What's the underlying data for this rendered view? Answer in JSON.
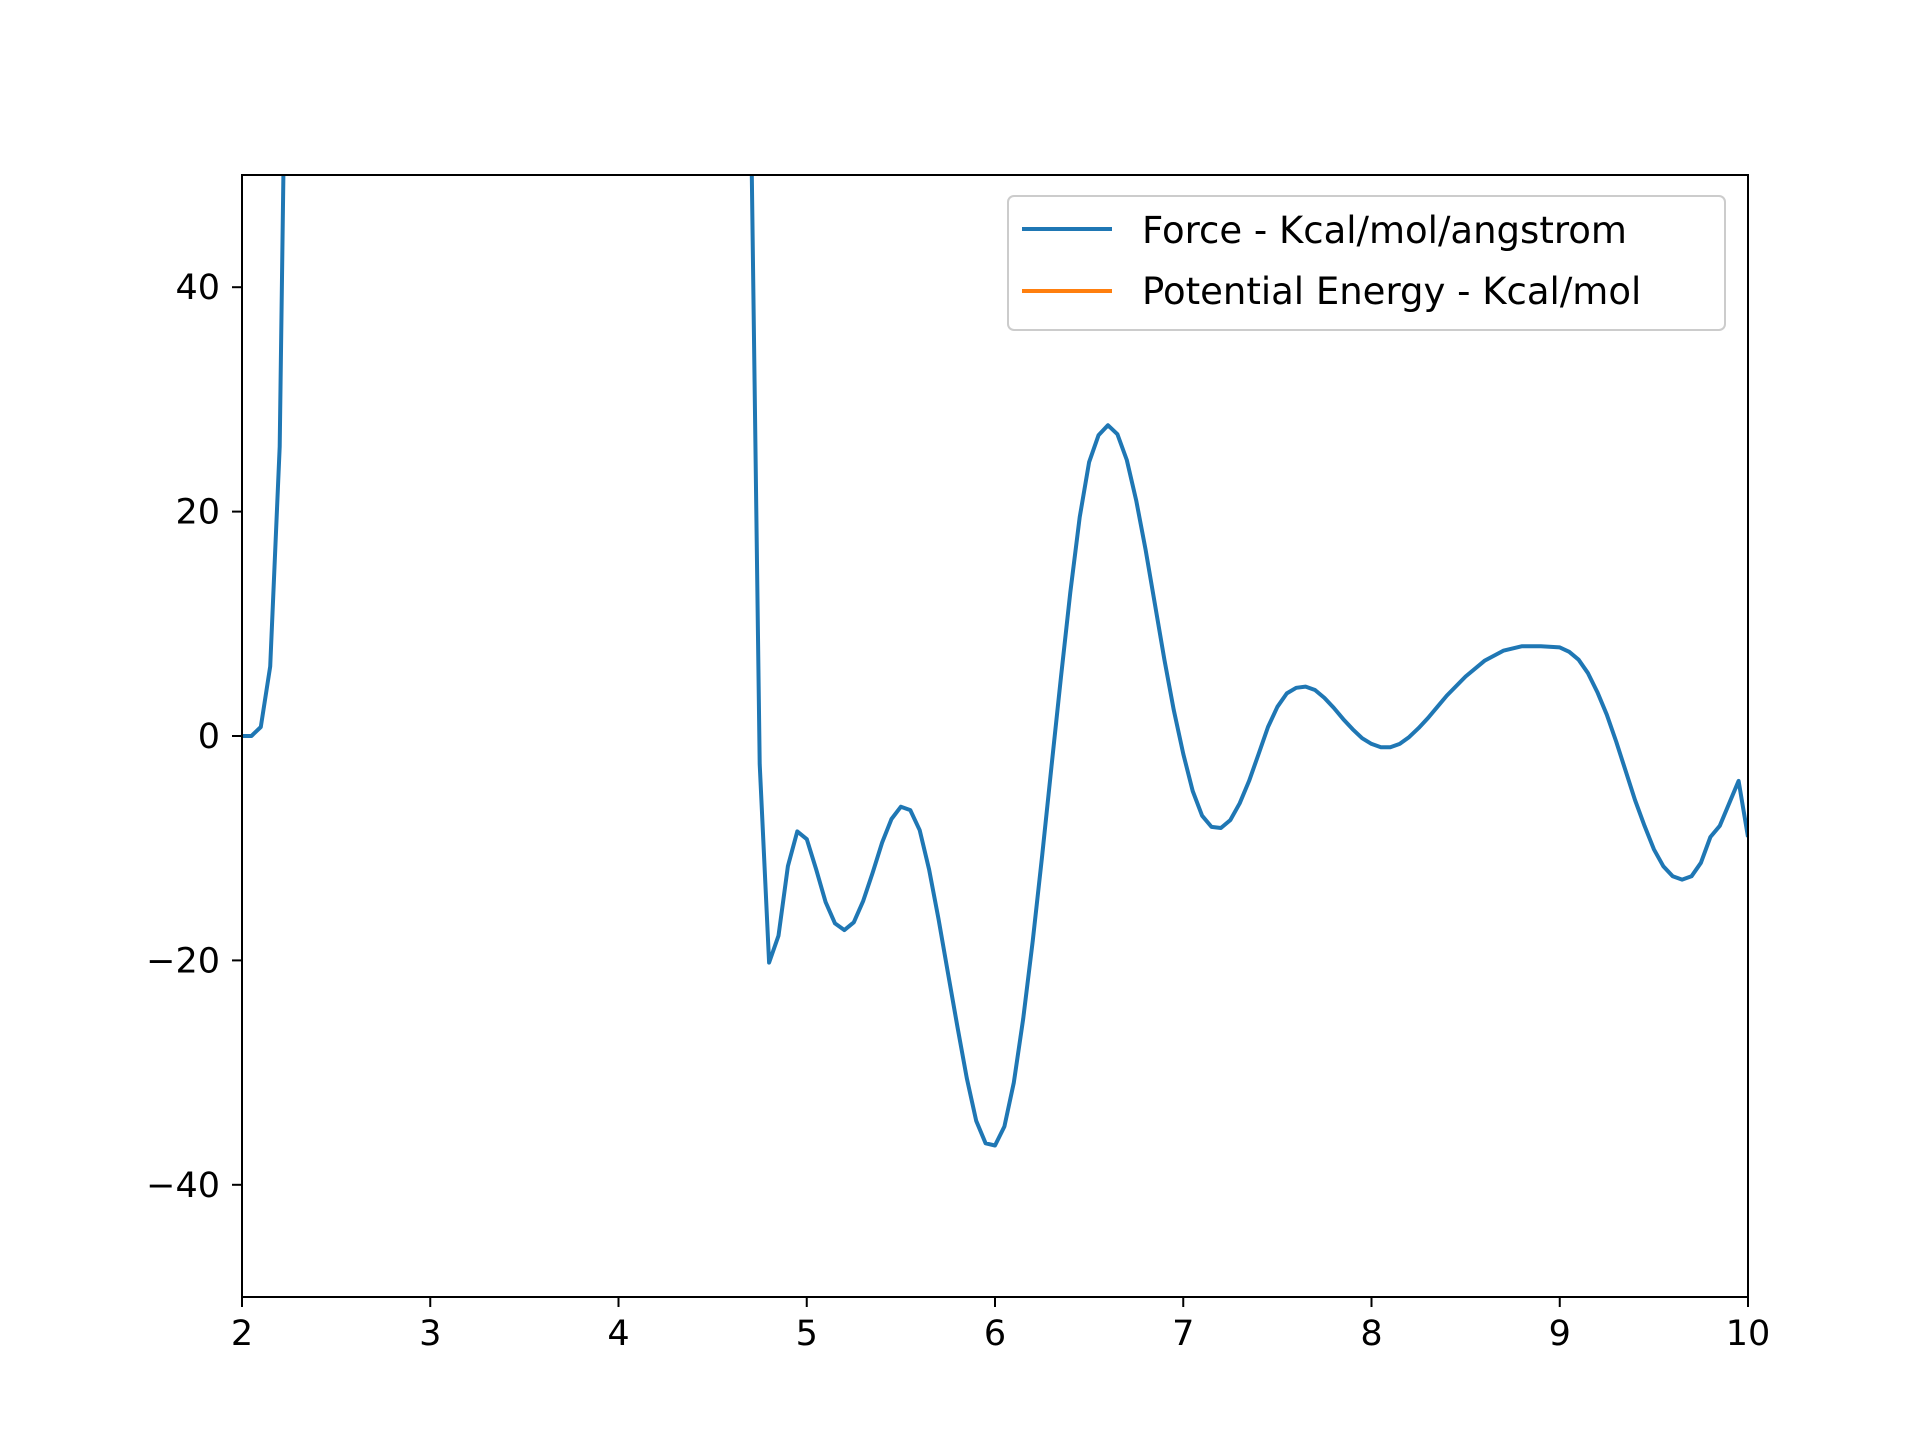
{
  "chart_data": {
    "type": "line",
    "title": "",
    "xlabel": "",
    "ylabel": "",
    "xlim": [
      2,
      10
    ],
    "ylim": [
      -50,
      50
    ],
    "xticks": [
      2,
      3,
      4,
      5,
      6,
      7,
      8,
      9,
      10
    ],
    "yticks": [
      -40,
      -20,
      0,
      20,
      40
    ],
    "xtick_labels": [
      "2",
      "3",
      "4",
      "5",
      "6",
      "7",
      "8",
      "9",
      "10"
    ],
    "ytick_labels": [
      "−40",
      "−20",
      "0",
      "20",
      "40"
    ],
    "grid": false,
    "legend": {
      "position": "top-right"
    },
    "series": [
      {
        "name": "Force - Kcal/mol/angstrom",
        "color": "#1f77b4",
        "x": [
          2.0,
          2.05,
          2.1,
          2.15,
          2.2,
          2.22,
          2.25,
          4.7,
          4.75,
          4.8,
          4.85,
          4.9,
          4.95,
          5.0,
          5.05,
          5.1,
          5.15,
          5.2,
          5.25,
          5.3,
          5.35,
          5.4,
          5.45,
          5.5,
          5.55,
          5.6,
          5.65,
          5.7,
          5.75,
          5.8,
          5.85,
          5.9,
          5.95,
          6.0,
          6.05,
          6.1,
          6.15,
          6.2,
          6.25,
          6.3,
          6.35,
          6.4,
          6.45,
          6.5,
          6.55,
          6.6,
          6.65,
          6.7,
          6.75,
          6.8,
          6.85,
          6.9,
          6.95,
          7.0,
          7.05,
          7.1,
          7.15,
          7.2,
          7.25,
          7.3,
          7.35,
          7.4,
          7.45,
          7.5,
          7.55,
          7.6,
          7.65,
          7.7,
          7.75,
          7.8,
          7.85,
          7.9,
          7.95,
          8.0,
          8.05,
          8.1,
          8.15,
          8.2,
          8.25,
          8.3,
          8.35,
          8.4,
          8.5,
          8.6,
          8.7,
          8.8,
          8.9,
          9.0,
          9.05,
          9.1,
          9.15,
          9.2,
          9.25,
          9.3,
          9.35,
          9.4,
          9.45,
          9.5,
          9.55,
          9.6,
          9.65,
          9.7,
          9.75,
          9.8,
          9.85,
          9.9,
          9.95,
          10.0
        ],
        "y": [
          0.0,
          0.0,
          0.8,
          6.2,
          25.8,
          50,
          60,
          60,
          -2.5,
          -20.2,
          -17.8,
          -11.6,
          -8.5,
          -9.2,
          -11.9,
          -14.8,
          -16.7,
          -17.3,
          -16.6,
          -14.7,
          -12.2,
          -9.5,
          -7.4,
          -6.3,
          -6.6,
          -8.4,
          -11.9,
          -16.3,
          -21.1,
          -25.9,
          -30.5,
          -34.3,
          -36.3,
          -36.5,
          -34.8,
          -30.9,
          -25.2,
          -18.3,
          -10.7,
          -2.7,
          5.2,
          12.8,
          19.5,
          24.4,
          26.8,
          27.7,
          26.9,
          24.6,
          21.0,
          16.6,
          11.7,
          6.8,
          2.3,
          -1.6,
          -4.9,
          -7.1,
          -8.1,
          -8.2,
          -7.5,
          -6.0,
          -4.0,
          -1.6,
          0.8,
          2.6,
          3.8,
          4.3,
          4.4,
          4.1,
          3.4,
          2.5,
          1.5,
          0.6,
          -0.2,
          -0.7,
          -1.0,
          -1.0,
          -0.7,
          -0.1,
          0.7,
          1.6,
          2.6,
          3.6,
          5.3,
          6.7,
          7.6,
          8.0,
          8.0,
          7.9,
          7.5,
          6.8,
          5.6,
          3.9,
          1.9,
          -0.5,
          -3.1,
          -5.7,
          -8.0,
          -10.1,
          -11.6,
          -12.5,
          -12.8,
          -12.5,
          -11.3,
          -9.0,
          -8.0,
          -6.0,
          -4.0,
          -9.0
        ]
      },
      {
        "name": "Potential Energy - Kcal/mol",
        "color": "#ff7f0e",
        "x": [],
        "y": []
      }
    ]
  }
}
